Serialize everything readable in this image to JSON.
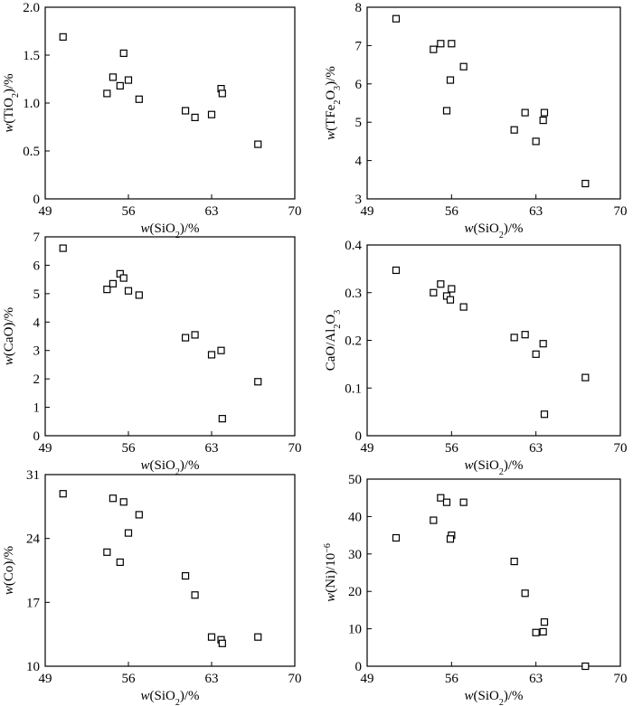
{
  "chart_data": [
    {
      "type": "scatter",
      "xlabel": "w(SiO₂)/%",
      "ylabel": "w(TiO₂)/%",
      "xlim": [
        49,
        70
      ],
      "ylim": [
        0,
        2.0
      ],
      "xticks": [
        "49",
        "56",
        "63",
        "70"
      ],
      "yticks": [
        "0",
        "0.5",
        "1.0",
        "1.5",
        "2.0"
      ],
      "x": [
        50.5,
        54.2,
        54.7,
        55.3,
        55.6,
        56.0,
        56.9,
        60.8,
        61.6,
        63.0,
        63.8,
        63.9,
        66.9
      ],
      "y": [
        1.69,
        1.1,
        1.27,
        1.18,
        1.52,
        1.24,
        1.04,
        0.92,
        0.85,
        0.88,
        1.15,
        1.1,
        0.57
      ]
    },
    {
      "type": "scatter",
      "xlabel": "w(SiO₂)/%",
      "ylabel": "w(TFe₂O₃)/%",
      "xlim": [
        49,
        70
      ],
      "ylim": [
        3,
        8
      ],
      "xticks": [
        "49",
        "56",
        "63",
        "70"
      ],
      "yticks": [
        "3",
        "4",
        "5",
        "6",
        "7",
        "8"
      ],
      "x": [
        51.4,
        54.5,
        55.1,
        55.6,
        56.0,
        55.9,
        57.0,
        61.2,
        62.1,
        63.0,
        63.6,
        63.7,
        67.1
      ],
      "y": [
        7.7,
        6.9,
        7.05,
        5.3,
        7.05,
        6.1,
        6.45,
        4.8,
        5.25,
        4.5,
        5.05,
        5.25,
        3.4
      ]
    },
    {
      "type": "scatter",
      "xlabel": "w(SiO₂)/%",
      "ylabel": "w(CaO)/%",
      "xlim": [
        49,
        70
      ],
      "ylim": [
        0,
        7
      ],
      "xticks": [
        "49",
        "56",
        "63",
        "70"
      ],
      "yticks": [
        "0",
        "1",
        "2",
        "3",
        "4",
        "5",
        "6",
        "7"
      ],
      "x": [
        50.5,
        54.2,
        54.7,
        55.3,
        55.6,
        56.0,
        56.9,
        60.8,
        61.6,
        63.0,
        63.8,
        63.9,
        66.9
      ],
      "y": [
        6.6,
        5.15,
        5.35,
        5.7,
        5.55,
        5.1,
        4.95,
        3.45,
        3.55,
        2.85,
        3.0,
        0.6,
        1.9
      ]
    },
    {
      "type": "scatter",
      "xlabel": "w(SiO₂)/%",
      "ylabel": "CaO/Al₂O₃",
      "xlim": [
        49,
        70
      ],
      "ylim": [
        0,
        0.4
      ],
      "xticks": [
        "49",
        "56",
        "63",
        "70"
      ],
      "yticks": [
        "0",
        "0.1",
        "0.2",
        "0.3",
        "0.4"
      ],
      "x": [
        51.4,
        54.5,
        55.1,
        55.6,
        56.0,
        55.9,
        57.0,
        61.2,
        62.1,
        63.0,
        63.6,
        63.7,
        67.1
      ],
      "y": [
        0.347,
        0.3,
        0.318,
        0.293,
        0.308,
        0.285,
        0.27,
        0.206,
        0.212,
        0.171,
        0.193,
        0.045,
        0.122
      ]
    },
    {
      "type": "scatter",
      "xlabel": "w(SiO₂)/%",
      "ylabel": "w(Co)/%",
      "xlim": [
        49,
        70
      ],
      "ylim": [
        10,
        31
      ],
      "xticks": [
        "49",
        "56",
        "63",
        "70"
      ],
      "yticks": [
        "10",
        "17",
        "24",
        "31"
      ],
      "x": [
        50.5,
        54.2,
        54.7,
        55.3,
        55.6,
        56.0,
        56.9,
        60.8,
        61.6,
        63.0,
        63.8,
        63.9,
        66.9
      ],
      "y": [
        28.9,
        22.5,
        28.4,
        21.4,
        28.0,
        24.6,
        26.6,
        19.9,
        17.8,
        13.2,
        12.9,
        12.5,
        13.2
      ]
    },
    {
      "type": "scatter",
      "xlabel": "w(SiO₂)/%",
      "ylabel": "w(Ni)/10⁻⁶",
      "xlim": [
        49,
        70
      ],
      "ylim": [
        0,
        50
      ],
      "xticks": [
        "49",
        "56",
        "63",
        "70"
      ],
      "yticks": [
        "0",
        "10",
        "20",
        "30",
        "40",
        "50"
      ],
      "x": [
        51.4,
        54.5,
        55.1,
        55.6,
        56.0,
        55.9,
        57.0,
        61.2,
        62.1,
        63.0,
        63.6,
        63.7,
        67.1
      ],
      "y": [
        34.3,
        39.0,
        45.0,
        43.8,
        35.0,
        34.0,
        43.8,
        28.0,
        19.5,
        9.0,
        9.2,
        11.8,
        0
      ]
    }
  ]
}
